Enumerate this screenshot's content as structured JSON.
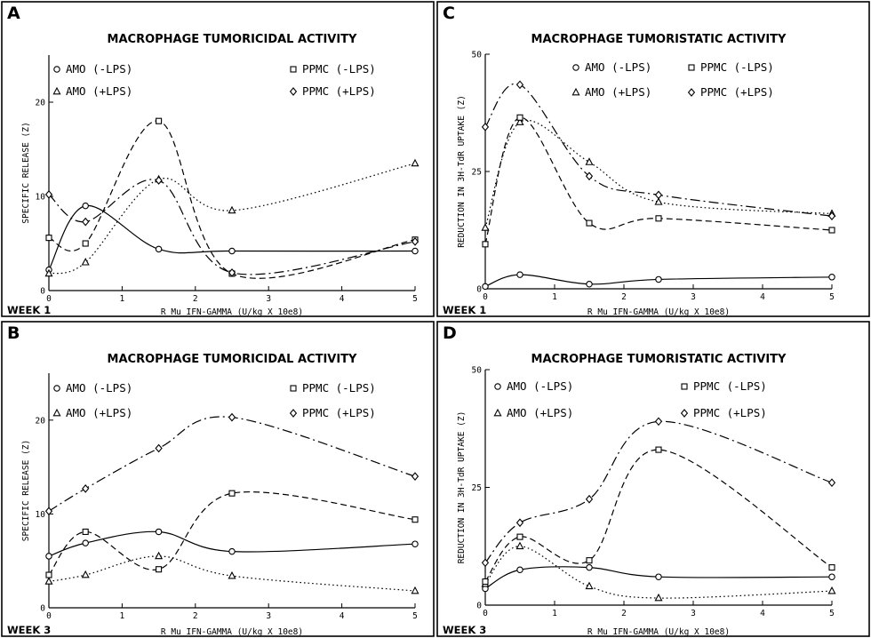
{
  "chart_data": [
    {
      "type": "line",
      "panel_label": "A",
      "title": "MACROPHAGE TUMORICIDAL ACTIVITY",
      "week_label": "WEEK 1",
      "xlabel": "R Mu IFN-GAMMA (U/kg X 10e8)",
      "ylabel": "SPECIFIC RELEASE (Z)",
      "xlim": [
        0,
        5
      ],
      "ylim": [
        0,
        25
      ],
      "x_ticks": [
        0,
        1,
        2,
        3,
        4,
        5
      ],
      "y_ticks": [
        0,
        10,
        20
      ],
      "x": [
        0,
        0.5,
        1.5,
        2.5,
        5
      ],
      "series": [
        {
          "name": "AMO (-LPS)",
          "marker": "circle",
          "dash": "solid",
          "values": [
            2.2,
            9.0,
            4.4,
            4.2,
            4.2
          ]
        },
        {
          "name": "AMO (+LPS)",
          "marker": "triangle",
          "dash": "dotted",
          "values": [
            1.8,
            3.0,
            11.8,
            8.5,
            13.5
          ]
        },
        {
          "name": "PPMC (-LPS)",
          "marker": "square",
          "dash": "dashed",
          "values": [
            5.6,
            5.0,
            18.0,
            1.8,
            5.4
          ]
        },
        {
          "name": "PPMC (+LPS)",
          "marker": "diamond",
          "dash": "dashdot",
          "values": [
            10.2,
            7.3,
            11.7,
            1.9,
            5.2
          ]
        }
      ]
    },
    {
      "type": "line",
      "panel_label": "C",
      "title": "MACROPHAGE TUMORISTATIC ACTIVITY",
      "week_label": "WEEK 1",
      "xlabel": "R Mu IFN-GAMMA (U/kg X 10e8)",
      "ylabel": "REDUCTION IN 3H-TdR UPTAKE (Z)",
      "xlim": [
        0,
        5
      ],
      "ylim": [
        0,
        50
      ],
      "x_ticks": [
        0,
        1,
        2,
        3,
        4,
        5
      ],
      "y_ticks": [
        0,
        25,
        50
      ],
      "x": [
        0,
        0.5,
        1.5,
        2.5,
        5
      ],
      "series": [
        {
          "name": "AMO (-LPS)",
          "marker": "circle",
          "dash": "solid",
          "values": [
            0.5,
            3.0,
            1.0,
            2.0,
            2.5
          ]
        },
        {
          "name": "AMO (+LPS)",
          "marker": "triangle",
          "dash": "dotted",
          "values": [
            13.0,
            35.5,
            27.0,
            18.5,
            16.0
          ]
        },
        {
          "name": "PPMC (-LPS)",
          "marker": "square",
          "dash": "dashed",
          "values": [
            9.5,
            36.5,
            14.0,
            15.0,
            12.5
          ]
        },
        {
          "name": "PPMC (+LPS)",
          "marker": "diamond",
          "dash": "dashdot",
          "values": [
            34.5,
            43.5,
            24.0,
            20.0,
            15.5
          ]
        }
      ]
    },
    {
      "type": "line",
      "panel_label": "B",
      "title": "MACROPHAGE TUMORICIDAL ACTIVITY",
      "week_label": "WEEK 3",
      "xlabel": "R Mu IFN-GAMMA (U/kg X 10e8)",
      "ylabel": "SPECIFIC RELEASE (Z)",
      "xlim": [
        0,
        5
      ],
      "ylim": [
        0,
        25
      ],
      "x_ticks": [
        0,
        1,
        2,
        3,
        4,
        5
      ],
      "y_ticks": [
        0,
        10,
        20
      ],
      "x": [
        0,
        0.5,
        1.5,
        2.5,
        5
      ],
      "series": [
        {
          "name": "AMO (-LPS)",
          "marker": "circle",
          "dash": "solid",
          "values": [
            5.5,
            6.9,
            8.1,
            6.0,
            6.8
          ]
        },
        {
          "name": "AMO (+LPS)",
          "marker": "triangle",
          "dash": "dotted",
          "values": [
            2.8,
            3.5,
            5.5,
            3.4,
            1.8
          ]
        },
        {
          "name": "PPMC (-LPS)",
          "marker": "square",
          "dash": "dashed",
          "values": [
            3.5,
            8.1,
            4.1,
            12.2,
            9.4
          ]
        },
        {
          "name": "PPMC (+LPS)",
          "marker": "diamond",
          "dash": "dashdot",
          "values": [
            10.3,
            12.7,
            17.0,
            20.3,
            14.0
          ]
        }
      ]
    },
    {
      "type": "line",
      "panel_label": "D",
      "title": "MACROPHAGE TUMORISTATIC ACTIVITY",
      "week_label": "WEEK 3",
      "xlabel": "R Mu IFN-GAMMA (U/kg X 10e8)",
      "ylabel": "REDUCTION IN 3H-TdR UPTAKE (Z)",
      "xlim": [
        0,
        5
      ],
      "ylim": [
        0,
        50
      ],
      "x_ticks": [
        0,
        1,
        2,
        3,
        4,
        5
      ],
      "y_ticks": [
        0,
        25,
        50
      ],
      "x": [
        0,
        0.5,
        1.5,
        2.5,
        5
      ],
      "series": [
        {
          "name": "AMO (-LPS)",
          "marker": "circle",
          "dash": "solid",
          "values": [
            3.5,
            7.5,
            8.0,
            6.0,
            6.0
          ]
        },
        {
          "name": "AMO (+LPS)",
          "marker": "triangle",
          "dash": "dotted",
          "values": [
            4.5,
            12.5,
            4.0,
            1.5,
            3.0
          ]
        },
        {
          "name": "PPMC (-LPS)",
          "marker": "square",
          "dash": "dashed",
          "values": [
            5.0,
            14.5,
            9.5,
            33.0,
            8.0
          ]
        },
        {
          "name": "PPMC (+LPS)",
          "marker": "diamond",
          "dash": "dashdot",
          "values": [
            9.0,
            17.5,
            22.5,
            39.0,
            26.0
          ]
        }
      ]
    }
  ]
}
